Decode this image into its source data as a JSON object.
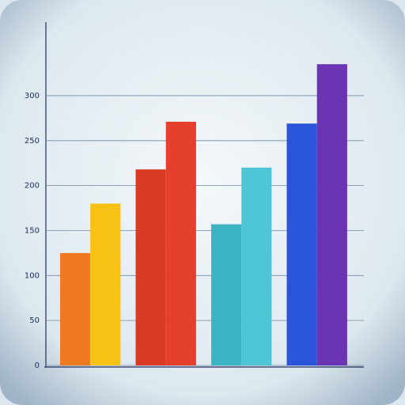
{
  "chart_data": {
    "type": "bar",
    "values": [
      125,
      180,
      218,
      271,
      157,
      220,
      269,
      335
    ],
    "colors": [
      "#f07a22",
      "#f7c214",
      "#d93a26",
      "#e5402e",
      "#3db4c4",
      "#4fc6d6",
      "#2a55d8",
      "#6b34b2"
    ],
    "ylim": [
      0,
      380
    ],
    "yticks": [
      0,
      50,
      100,
      150,
      200,
      250,
      300
    ],
    "grid": true
  }
}
